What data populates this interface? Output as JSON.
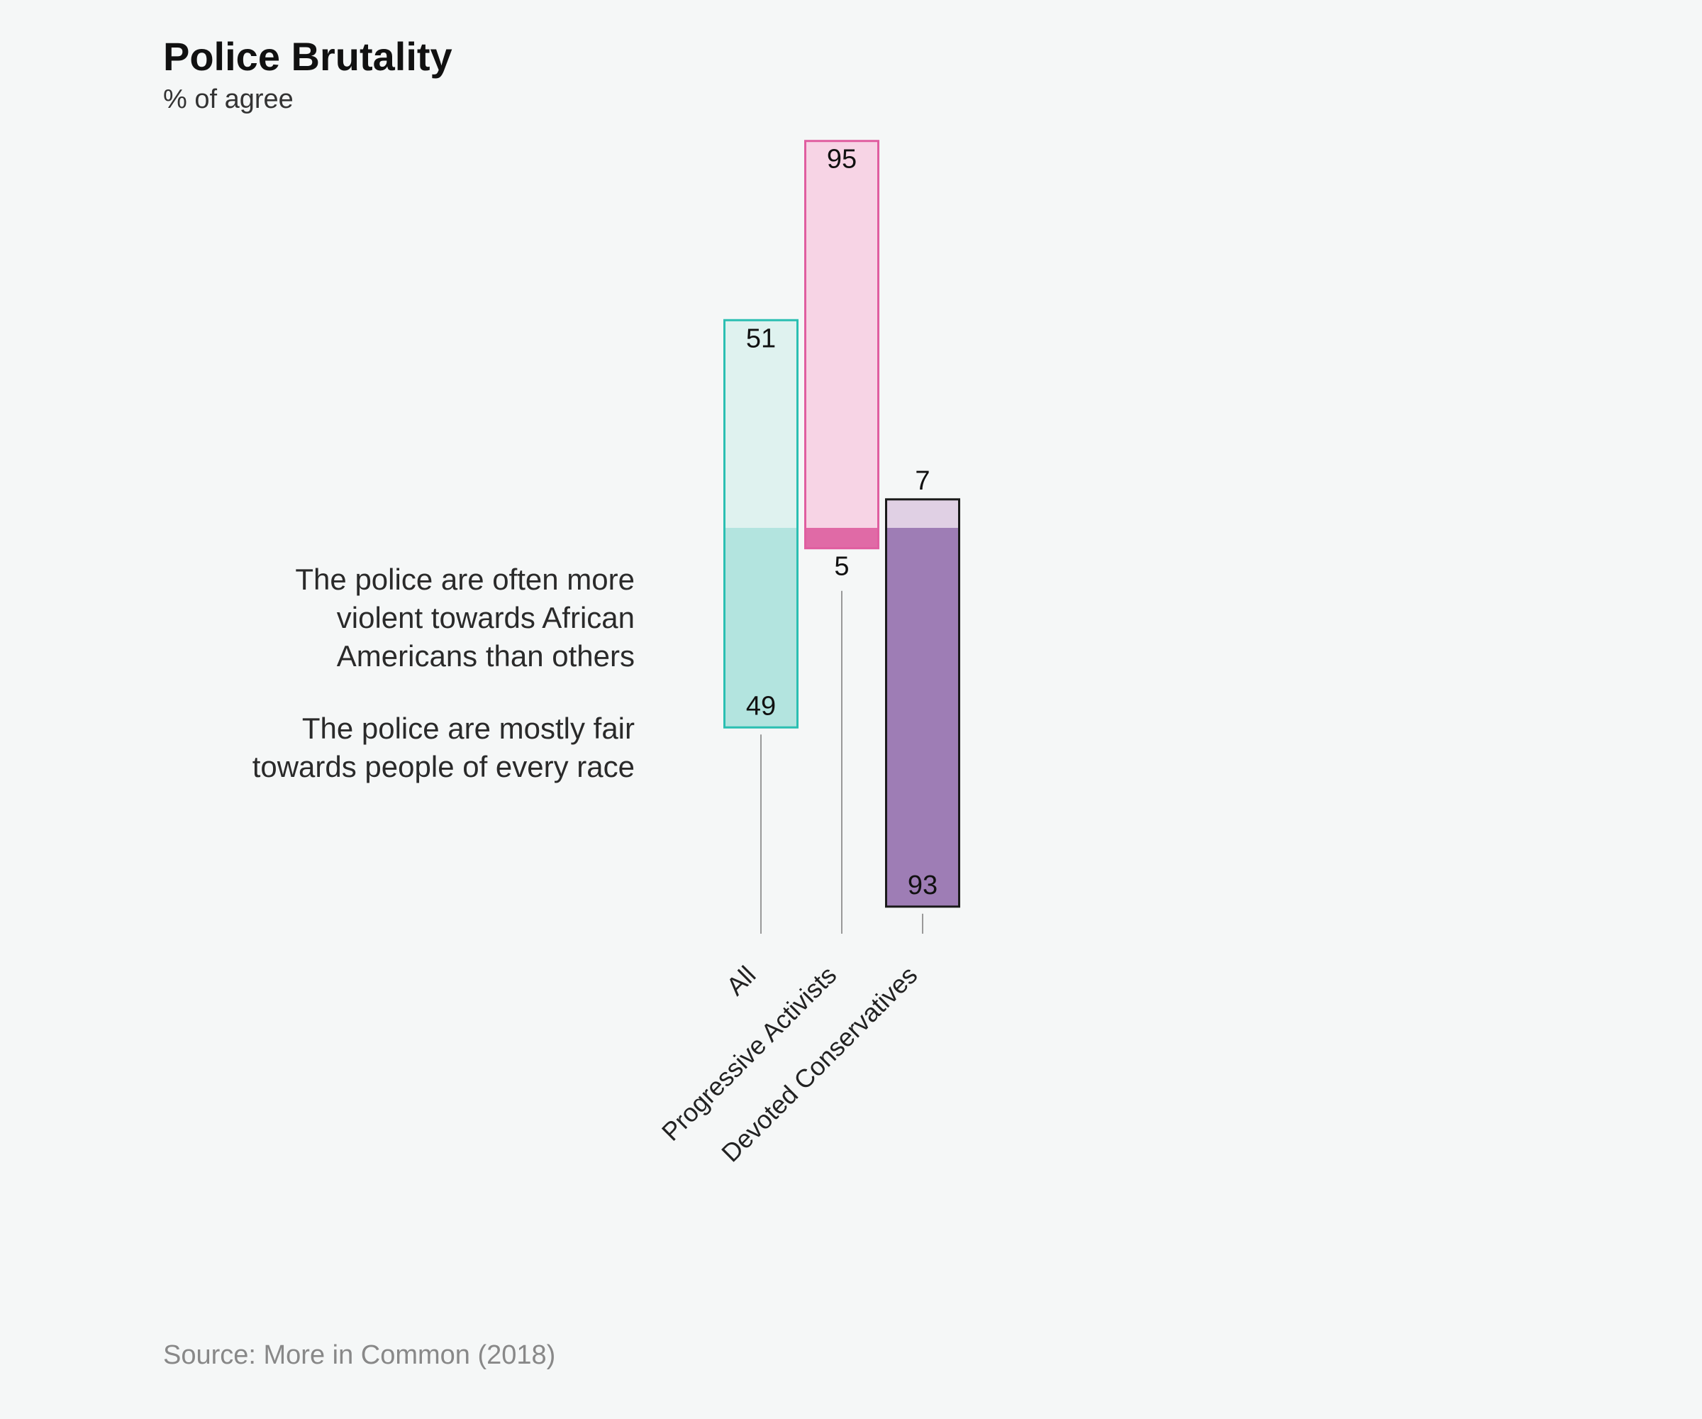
{
  "chart_data": {
    "type": "diverging_bar",
    "title": "Police Brutality",
    "subtitle": "% of agree",
    "source": "Source: More in Common (2018)",
    "categories": [
      "All",
      "Progressive Activists",
      "Devoted Conservatives"
    ],
    "category_colors": [
      {
        "outline": "#2bbfb2",
        "upper": "#dff2ef",
        "lower": "#b3e4df"
      },
      {
        "outline": "#e05ea0",
        "upper": "#f7d4e5",
        "lower": "#e06aa6"
      },
      {
        "outline": "#1a1a1a",
        "upper": "#e0d0e4",
        "lower": "#9e7db5"
      }
    ],
    "series": [
      {
        "name": "The police are often more violent towards African Americans than others",
        "values": [
          51,
          95,
          7
        ]
      },
      {
        "name": "The police are mostly fair towards people of every race",
        "values": [
          49,
          5,
          93
        ]
      }
    ]
  }
}
